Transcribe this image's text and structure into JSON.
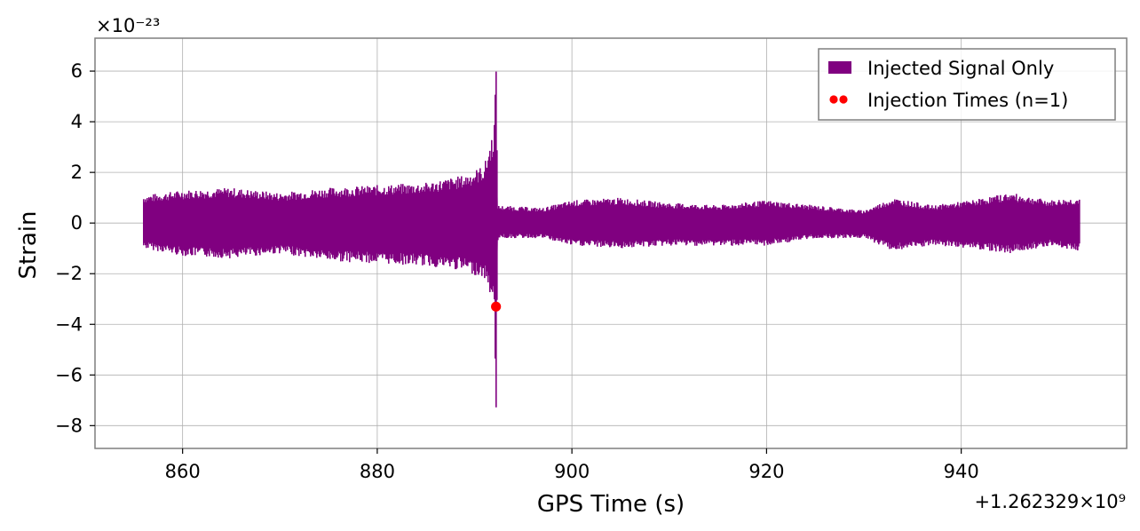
{
  "chart_data": {
    "type": "line",
    "xlabel": "GPS Time (s)",
    "ylabel": "Strain",
    "x_offset_text": "+1.262329×10⁹",
    "y_scale_text": "×10⁻²³",
    "xlim": [
      851,
      957
    ],
    "ylim": [
      -8.9,
      7.3
    ],
    "xticks": [
      860,
      880,
      900,
      920,
      940
    ],
    "xtick_labels": [
      "860",
      "880",
      "900",
      "920",
      "940"
    ],
    "yticks": [
      6,
      4,
      2,
      0,
      -2,
      -4,
      -6,
      -8
    ],
    "ytick_labels": [
      "6",
      "4",
      "2",
      "0",
      "−2",
      "−4",
      "−6",
      "−8"
    ],
    "grid": true,
    "legend_position": "top-right",
    "series": [
      {
        "name": "Injected Signal Only",
        "kind": "strain-envelope",
        "color": "#800080",
        "x_start": 856.0,
        "x_end": 952.2,
        "envelope_points": [
          {
            "x": 856.0,
            "upper": 1.1,
            "lower": -1.0
          },
          {
            "x": 860.0,
            "upper": 1.3,
            "lower": -1.3
          },
          {
            "x": 865.0,
            "upper": 1.4,
            "lower": -1.4
          },
          {
            "x": 870.0,
            "upper": 1.2,
            "lower": -1.2
          },
          {
            "x": 875.0,
            "upper": 1.4,
            "lower": -1.5
          },
          {
            "x": 880.0,
            "upper": 1.5,
            "lower": -1.6
          },
          {
            "x": 885.0,
            "upper": 1.6,
            "lower": -1.7
          },
          {
            "x": 889.0,
            "upper": 1.9,
            "lower": -1.9
          },
          {
            "x": 891.0,
            "upper": 2.3,
            "lower": -2.2
          },
          {
            "x": 892.0,
            "upper": 3.8,
            "lower": -3.2
          },
          {
            "x": 892.2,
            "upper": 6.5,
            "lower": -8.1
          },
          {
            "x": 892.4,
            "upper": 0.7,
            "lower": -0.6
          },
          {
            "x": 897.0,
            "upper": 0.6,
            "lower": -0.6
          },
          {
            "x": 900.0,
            "upper": 0.9,
            "lower": -0.9
          },
          {
            "x": 905.0,
            "upper": 1.0,
            "lower": -1.0
          },
          {
            "x": 910.0,
            "upper": 0.8,
            "lower": -0.9
          },
          {
            "x": 915.0,
            "upper": 0.7,
            "lower": -0.9
          },
          {
            "x": 920.0,
            "upper": 0.9,
            "lower": -0.9
          },
          {
            "x": 925.0,
            "upper": 0.7,
            "lower": -0.6
          },
          {
            "x": 930.0,
            "upper": 0.5,
            "lower": -0.6
          },
          {
            "x": 933.0,
            "upper": 1.0,
            "lower": -1.1
          },
          {
            "x": 937.0,
            "upper": 0.7,
            "lower": -0.9
          },
          {
            "x": 941.0,
            "upper": 0.9,
            "lower": -1.0
          },
          {
            "x": 945.0,
            "upper": 1.2,
            "lower": -1.2
          },
          {
            "x": 949.0,
            "upper": 0.9,
            "lower": -0.9
          },
          {
            "x": 952.2,
            "upper": 1.0,
            "lower": -1.1
          }
        ]
      },
      {
        "name": "Injection Times (n=1)",
        "kind": "scatter",
        "color": "#ff0000",
        "points": [
          {
            "x": 892.2,
            "y": -3.3
          }
        ]
      }
    ]
  }
}
